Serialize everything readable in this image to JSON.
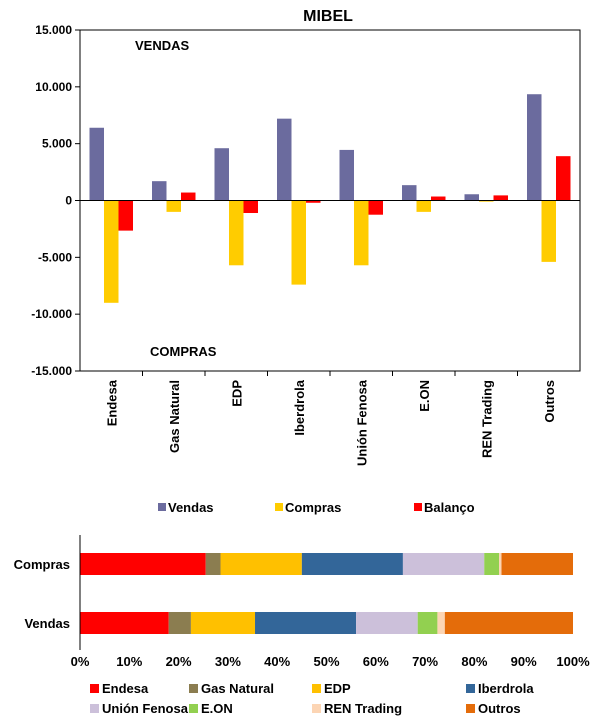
{
  "chart_data": [
    {
      "type": "bar",
      "title": "MIBEL",
      "annotations": {
        "top": "VENDAS",
        "bottom": "COMPRAS"
      },
      "categories": [
        "Endesa",
        "Gas Natural",
        "EDP",
        "Iberdrola",
        "Unión Fenosa",
        "E.ON",
        "REN Trading",
        "Outros"
      ],
      "series": [
        {
          "name": "Vendas",
          "color": "#6B6B9E",
          "values": [
            6400,
            1700,
            4600,
            7200,
            4450,
            1350,
            550,
            9350
          ]
        },
        {
          "name": "Compras",
          "color": "#FFCC00",
          "values": [
            -9000,
            -1000,
            -5700,
            -7400,
            -5700,
            -1000,
            -100,
            -5400
          ]
        },
        {
          "name": "Balanço",
          "color": "#FF0000",
          "values": [
            -2650,
            700,
            -1100,
            -200,
            -1250,
            350,
            450,
            3900
          ]
        }
      ],
      "ylim": [
        -15000,
        15000
      ],
      "yticks": [
        15000,
        10000,
        5000,
        0,
        -5000,
        -10000,
        -15000
      ],
      "ytick_labels": [
        "15.000",
        "10.000",
        "5.000",
        "0",
        "-5.000",
        "-10.000",
        "-15.000"
      ],
      "grid": false,
      "legend_position": "bottom"
    },
    {
      "type": "bar",
      "orientation": "horizontal",
      "stacked": "percent",
      "categories": [
        "Compras",
        "Vendas"
      ],
      "series": [
        {
          "name": "Endesa",
          "color": "#FF0000",
          "values": [
            25.5,
            18.0
          ]
        },
        {
          "name": "Gas Natural",
          "color": "#8B7D50",
          "values": [
            3.0,
            4.5
          ]
        },
        {
          "name": "EDP",
          "color": "#FFC000",
          "values": [
            16.5,
            13.0
          ]
        },
        {
          "name": "Iberdrola",
          "color": "#336699",
          "values": [
            20.5,
            20.5
          ]
        },
        {
          "name": "Unión Fenosa",
          "color": "#CCC0DA",
          "values": [
            16.5,
            12.5
          ]
        },
        {
          "name": "E.ON",
          "color": "#92D050",
          "values": [
            3.0,
            4.0
          ]
        },
        {
          "name": "REN Trading",
          "color": "#FCD5B4",
          "values": [
            0.5,
            1.5
          ]
        },
        {
          "name": "Outros",
          "color": "#E46C0A",
          "values": [
            14.5,
            26.0
          ]
        }
      ],
      "xlim": [
        0,
        100
      ],
      "xtick_labels": [
        "0%",
        "10%",
        "20%",
        "30%",
        "40%",
        "50%",
        "60%",
        "70%",
        "80%",
        "90%",
        "100%"
      ],
      "legend_position": "bottom"
    }
  ]
}
